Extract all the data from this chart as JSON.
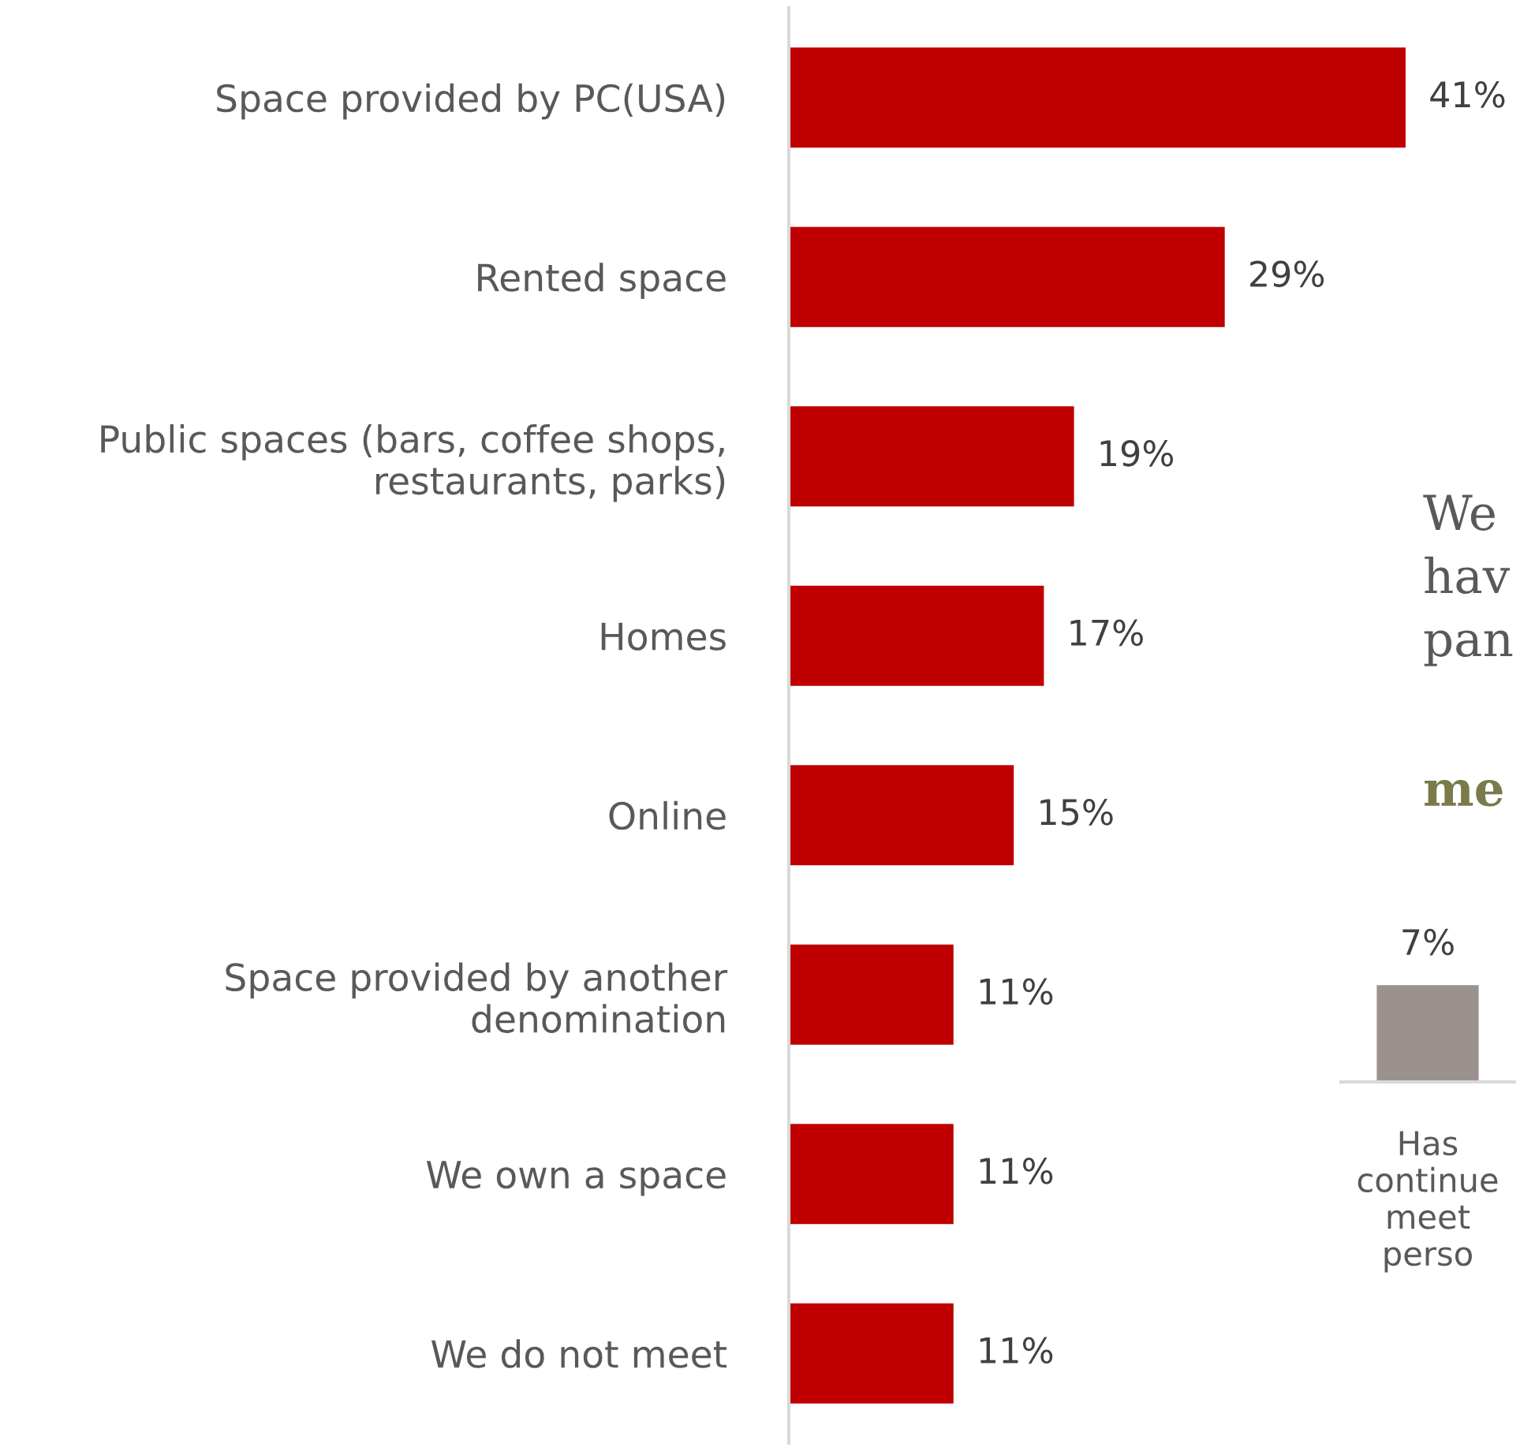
{
  "chart_data": [
    {
      "type": "bar",
      "orientation": "horizontal",
      "categories": [
        "Space provided by PC(USA)",
        "Rented space",
        "Public spaces (bars, coffee shops,\nrestaurants, parks)",
        "Homes",
        "Online",
        "Space provided by another\ndenomination",
        "We own a space",
        "We do not meet"
      ],
      "values": [
        41,
        29,
        19,
        17,
        15,
        11,
        11,
        11
      ],
      "color": "#c00000",
      "value_labels": [
        "41%",
        "29%",
        "19%",
        "17%",
        "15%",
        "11%",
        "11%",
        "11%"
      ]
    },
    {
      "type": "bar",
      "categories": [
        "Has\ncontinue\nmeet\nperso"
      ],
      "values": [
        7
      ],
      "color": "#9b918e",
      "value_labels": [
        "7%"
      ],
      "annotations": [
        "We\nhav\npan",
        "me"
      ]
    }
  ]
}
